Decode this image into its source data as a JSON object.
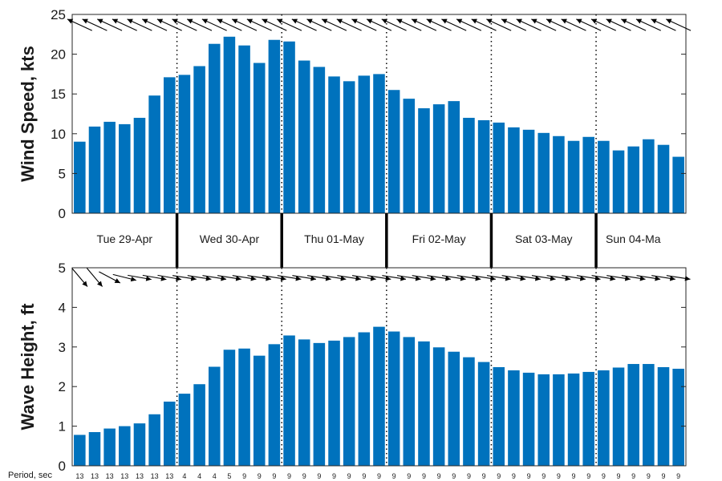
{
  "chart_data": [
    {
      "type": "bar",
      "ylabel": "Wind Speed, kts",
      "ylim": [
        0,
        25
      ],
      "yticks": [
        0,
        5,
        10,
        15,
        20,
        25
      ],
      "bar_color": "#0072BD",
      "values": [
        9.0,
        10.9,
        11.5,
        11.2,
        12.0,
        14.8,
        17.1,
        17.4,
        18.5,
        21.3,
        22.2,
        21.1,
        18.9,
        21.8,
        21.6,
        19.2,
        18.4,
        17.2,
        16.6,
        17.3,
        17.5,
        15.5,
        14.4,
        13.2,
        13.7,
        14.1,
        12.0,
        11.7,
        11.4,
        10.8,
        10.5,
        10.1,
        9.7,
        9.1,
        9.6,
        9.1,
        7.9,
        8.4,
        9.3,
        8.6,
        7.1
      ],
      "direction_arrows": [
        300,
        300,
        300,
        300,
        300,
        300,
        300,
        300,
        300,
        300,
        300,
        300,
        300,
        300,
        300,
        300,
        300,
        300,
        300,
        300,
        300,
        300,
        300,
        300,
        300,
        300,
        300,
        300,
        300,
        300,
        300,
        300,
        300,
        300,
        300,
        300,
        300,
        300,
        300,
        300,
        300
      ],
      "day_dividers": "dotted"
    },
    {
      "type": "bar",
      "ylabel": "Wave Height, ft",
      "ylim": [
        0,
        5
      ],
      "yticks": [
        0,
        1,
        2,
        3,
        4,
        5
      ],
      "bar_color": "#0072BD",
      "values": [
        0.78,
        0.85,
        0.94,
        1.0,
        1.07,
        1.3,
        1.62,
        1.82,
        2.06,
        2.5,
        2.93,
        2.96,
        2.78,
        3.07,
        3.29,
        3.19,
        3.1,
        3.16,
        3.25,
        3.37,
        3.51,
        3.39,
        3.25,
        3.14,
        2.99,
        2.88,
        2.74,
        2.62,
        2.49,
        2.41,
        2.35,
        2.31,
        2.31,
        2.33,
        2.37,
        2.41,
        2.48,
        2.57,
        2.57,
        2.49,
        2.45
      ],
      "direction_arrows": [],
      "period_title": "Period, sec",
      "periods": [
        "13",
        "13",
        "13",
        "13",
        "13",
        "13",
        "13",
        "4",
        "4",
        "4",
        "5",
        "9",
        "9",
        "9",
        "9",
        "9",
        "9",
        "9",
        "9",
        "9",
        "9",
        "9",
        "9",
        "9",
        "9",
        "9",
        "9",
        "9",
        "9",
        "9",
        "9",
        "9",
        "9",
        "9",
        "9",
        "9",
        "9",
        "9",
        "9",
        "9",
        "9"
      ]
    }
  ],
  "days": [
    "Tue 29-Apr",
    "Wed 30-Apr",
    "Thu 01-May",
    "Fri 02-May",
    "Sat 03-May",
    "Sun 04-Ma"
  ],
  "day_bounds": [
    6.5,
    13.5,
    20.5,
    27.5,
    34.5
  ]
}
